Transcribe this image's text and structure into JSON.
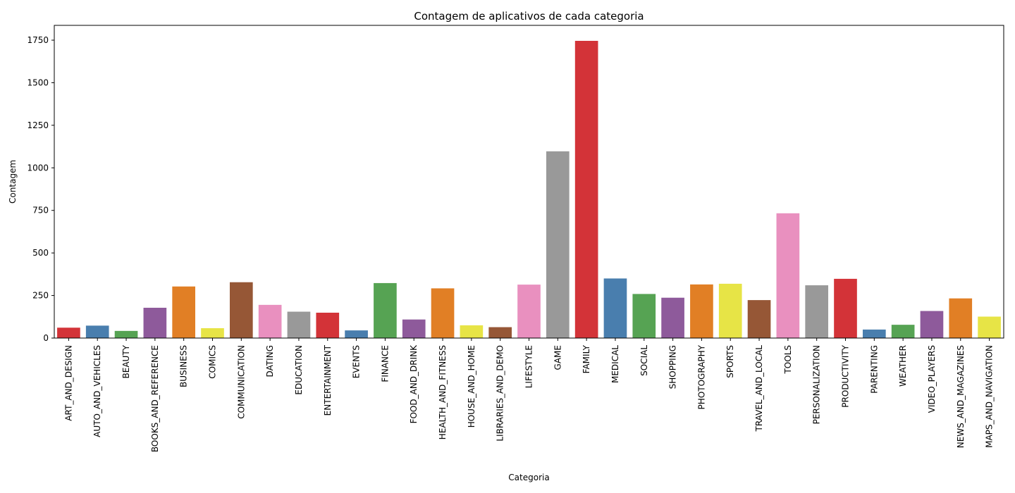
{
  "chart_data": {
    "type": "bar",
    "title": "Contagem de aplicativos de cada categoria",
    "xlabel": "Categoria",
    "ylabel": "Contagem",
    "ylim": [
      0,
      1837
    ],
    "yticks": [
      0,
      250,
      500,
      750,
      1000,
      1250,
      1500,
      1750
    ],
    "grid": false,
    "categories": [
      "ART_AND_DESIGN",
      "AUTO_AND_VEHICLES",
      "BEAUTY",
      "BOOKS_AND_REFERENCE",
      "BUSINESS",
      "COMICS",
      "COMMUNICATION",
      "DATING",
      "EDUCATION",
      "ENTERTAINMENT",
      "EVENTS",
      "FINANCE",
      "FOOD_AND_DRINK",
      "HEALTH_AND_FITNESS",
      "HOUSE_AND_HOME",
      "LIBRARIES_AND_DEMO",
      "LIFESTYLE",
      "GAME",
      "FAMILY",
      "MEDICAL",
      "SOCIAL",
      "SHOPPING",
      "PHOTOGRAPHY",
      "SPORTS",
      "TRAVEL_AND_LOCAL",
      "TOOLS",
      "PERSONALIZATION",
      "PRODUCTIVITY",
      "PARENTING",
      "WEATHER",
      "VIDEO_PLAYERS",
      "NEWS_AND_MAGAZINES",
      "MAPS_AND_NAVIGATION"
    ],
    "values": [
      61,
      73,
      42,
      178,
      303,
      58,
      328,
      195,
      155,
      149,
      45,
      323,
      109,
      292,
      75,
      64,
      314,
      1097,
      1746,
      350,
      259,
      237,
      315,
      319,
      223,
      733,
      310,
      348,
      50,
      78,
      159,
      233,
      126
    ],
    "colors": [
      "#d33338",
      "#497eae",
      "#56a353",
      "#8e5a9b",
      "#e17f25",
      "#e7e446",
      "#965736",
      "#e990bf",
      "#999999"
    ]
  }
}
